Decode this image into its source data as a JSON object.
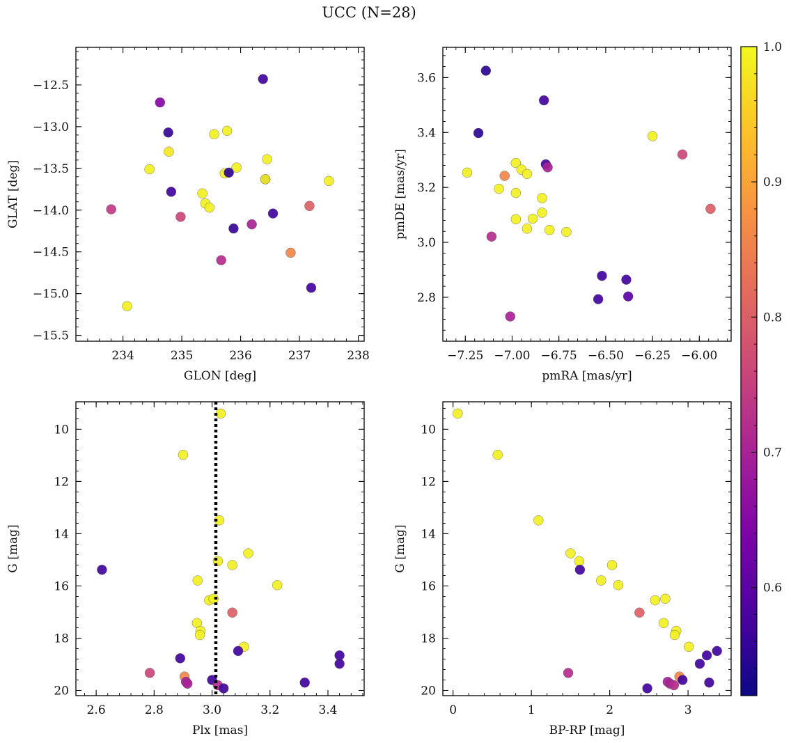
{
  "figure": {
    "title": "UCC (N=28)"
  },
  "colorbar": {
    "range": [
      0.52,
      1.0
    ],
    "ticks": [
      0.6,
      0.7,
      0.8,
      0.9,
      1.0
    ],
    "tick_labels": [
      "0.6",
      "0.7",
      "0.8",
      "0.9",
      "1.0"
    ],
    "colormap": "plasma"
  },
  "chart_data": [
    {
      "type": "scatter",
      "xlabel": "GLON [deg]",
      "ylabel": "GLAT [deg]",
      "xlim": [
        233.2,
        238.1
      ],
      "ylim": [
        -15.57,
        -12.05
      ],
      "y_inverted": false,
      "xticks": [
        234,
        235,
        236,
        237,
        238
      ],
      "xtick_labels": [
        "234",
        "235",
        "236",
        "237",
        "238"
      ],
      "yticks": [
        -15.5,
        -15.0,
        -14.5,
        -14.0,
        -13.5,
        -13.0,
        -12.5
      ],
      "ytick_labels": [
        "−15.5",
        "−15.0",
        "−14.5",
        "−14.0",
        "−13.5",
        "−13.0",
        "−12.5"
      ],
      "points": [
        {
          "x": 236.38,
          "y": -12.43,
          "c": 0.57
        },
        {
          "x": 234.63,
          "y": -12.71,
          "c": 0.65
        },
        {
          "x": 234.77,
          "y": -13.07,
          "c": 0.56
        },
        {
          "x": 235.55,
          "y": -13.09,
          "c": 0.99
        },
        {
          "x": 235.77,
          "y": -13.05,
          "c": 0.99
        },
        {
          "x": 234.78,
          "y": -13.3,
          "c": 0.98
        },
        {
          "x": 236.45,
          "y": -13.39,
          "c": 0.99
        },
        {
          "x": 234.45,
          "y": -13.51,
          "c": 0.99
        },
        {
          "x": 235.93,
          "y": -13.49,
          "c": 0.99
        },
        {
          "x": 235.73,
          "y": -13.56,
          "c": 0.99
        },
        {
          "x": 235.8,
          "y": -13.55,
          "c": 0.55
        },
        {
          "x": 236.42,
          "y": -13.63,
          "c": 0.57
        },
        {
          "x": 236.42,
          "y": -13.63,
          "c": 0.99
        },
        {
          "x": 237.5,
          "y": -13.65,
          "c": 0.99
        },
        {
          "x": 234.82,
          "y": -13.78,
          "c": 0.57
        },
        {
          "x": 235.35,
          "y": -13.8,
          "c": 0.99
        },
        {
          "x": 235.4,
          "y": -13.92,
          "c": 0.99
        },
        {
          "x": 235.47,
          "y": -13.97,
          "c": 0.99
        },
        {
          "x": 233.8,
          "y": -13.99,
          "c": 0.74
        },
        {
          "x": 237.17,
          "y": -13.95,
          "c": 0.8
        },
        {
          "x": 236.55,
          "y": -14.04,
          "c": 0.57
        },
        {
          "x": 234.98,
          "y": -14.08,
          "c": 0.76
        },
        {
          "x": 236.19,
          "y": -14.17,
          "c": 0.7
        },
        {
          "x": 235.88,
          "y": -14.22,
          "c": 0.56
        },
        {
          "x": 236.85,
          "y": -14.51,
          "c": 0.86
        },
        {
          "x": 235.67,
          "y": -14.6,
          "c": 0.72
        },
        {
          "x": 237.2,
          "y": -14.93,
          "c": 0.57
        },
        {
          "x": 234.07,
          "y": -15.15,
          "c": 0.99
        }
      ]
    },
    {
      "type": "scatter",
      "xlabel": "pmRA [mas/yr]",
      "ylabel": "pmDE [mas/yr]",
      "xlim": [
        -7.37,
        -5.83
      ],
      "ylim": [
        2.64,
        3.71
      ],
      "y_inverted": false,
      "xticks": [
        -7.25,
        -7.0,
        -6.75,
        -6.5,
        -6.25,
        -6.0
      ],
      "xtick_labels": [
        "−7.25",
        "−7.00",
        "−6.75",
        "−6.50",
        "−6.25",
        "−6.00"
      ],
      "yticks": [
        2.8,
        3.0,
        3.2,
        3.4,
        3.6
      ],
      "ytick_labels": [
        "2.8",
        "3.0",
        "3.2",
        "3.4",
        "3.6"
      ],
      "points": [
        {
          "x": -7.14,
          "y": 3.625,
          "c": 0.55
        },
        {
          "x": -6.83,
          "y": 3.517,
          "c": 0.57
        },
        {
          "x": -7.18,
          "y": 3.398,
          "c": 0.55
        },
        {
          "x": -6.25,
          "y": 3.387,
          "c": 0.99
        },
        {
          "x": -6.09,
          "y": 3.32,
          "c": 0.76
        },
        {
          "x": -6.98,
          "y": 3.289,
          "c": 0.99
        },
        {
          "x": -6.82,
          "y": 3.284,
          "c": 0.57
        },
        {
          "x": -6.81,
          "y": 3.273,
          "c": 0.7
        },
        {
          "x": -6.95,
          "y": 3.265,
          "c": 0.99
        },
        {
          "x": -7.24,
          "y": 3.254,
          "c": 0.99
        },
        {
          "x": -6.92,
          "y": 3.249,
          "c": 0.99
        },
        {
          "x": -7.04,
          "y": 3.242,
          "c": 0.86
        },
        {
          "x": -7.07,
          "y": 3.195,
          "c": 0.99
        },
        {
          "x": -6.98,
          "y": 3.18,
          "c": 0.99
        },
        {
          "x": -6.84,
          "y": 3.161,
          "c": 0.99
        },
        {
          "x": -5.94,
          "y": 3.122,
          "c": 0.8
        },
        {
          "x": -6.84,
          "y": 3.108,
          "c": 0.99
        },
        {
          "x": -6.98,
          "y": 3.084,
          "c": 0.99
        },
        {
          "x": -6.89,
          "y": 3.086,
          "c": 0.99
        },
        {
          "x": -6.92,
          "y": 3.05,
          "c": 0.99
        },
        {
          "x": -6.8,
          "y": 3.045,
          "c": 0.99
        },
        {
          "x": -6.71,
          "y": 3.038,
          "c": 0.99
        },
        {
          "x": -7.11,
          "y": 3.021,
          "c": 0.72
        },
        {
          "x": -6.52,
          "y": 2.878,
          "c": 0.57
        },
        {
          "x": -6.39,
          "y": 2.864,
          "c": 0.57
        },
        {
          "x": -6.38,
          "y": 2.803,
          "c": 0.6
        },
        {
          "x": -6.54,
          "y": 2.793,
          "c": 0.57
        },
        {
          "x": -7.01,
          "y": 2.73,
          "c": 0.7
        }
      ]
    },
    {
      "type": "scatter",
      "xlabel": "Plx [mas]",
      "ylabel": "G [mag]",
      "xlim": [
        2.53,
        3.525
      ],
      "ylim": [
        20.2,
        8.95
      ],
      "y_inverted": true,
      "xticks": [
        2.6,
        2.8,
        3.0,
        3.2,
        3.4
      ],
      "xtick_labels": [
        "2.6",
        "2.8",
        "3.0",
        "3.2",
        "3.4"
      ],
      "yticks": [
        10,
        12,
        14,
        16,
        18,
        20
      ],
      "ytick_labels": [
        "10",
        "12",
        "14",
        "16",
        "18",
        "20"
      ],
      "vline": {
        "x": 3.013,
        "style": "dotted",
        "color": "#000000"
      },
      "points": [
        {
          "x": 3.03,
          "y": 9.4,
          "c": 0.99
        },
        {
          "x": 2.9,
          "y": 10.98,
          "c": 0.99
        },
        {
          "x": 3.025,
          "y": 13.49,
          "c": 0.99
        },
        {
          "x": 3.125,
          "y": 14.75,
          "c": 0.99
        },
        {
          "x": 3.02,
          "y": 15.05,
          "c": 0.99
        },
        {
          "x": 3.07,
          "y": 15.2,
          "c": 0.99
        },
        {
          "x": 2.62,
          "y": 15.38,
          "c": 0.57
        },
        {
          "x": 2.95,
          "y": 15.79,
          "c": 0.99
        },
        {
          "x": 3.225,
          "y": 15.97,
          "c": 0.99
        },
        {
          "x": 2.99,
          "y": 16.55,
          "c": 0.99
        },
        {
          "x": 3.005,
          "y": 16.49,
          "c": 0.99
        },
        {
          "x": 3.07,
          "y": 17.02,
          "c": 0.8
        },
        {
          "x": 2.948,
          "y": 17.42,
          "c": 0.99
        },
        {
          "x": 2.96,
          "y": 17.72,
          "c": 0.99
        },
        {
          "x": 2.958,
          "y": 17.88,
          "c": 0.99
        },
        {
          "x": 3.11,
          "y": 18.33,
          "c": 0.99
        },
        {
          "x": 3.09,
          "y": 18.49,
          "c": 0.57
        },
        {
          "x": 3.44,
          "y": 18.66,
          "c": 0.57
        },
        {
          "x": 2.89,
          "y": 18.77,
          "c": 0.57
        },
        {
          "x": 3.44,
          "y": 18.98,
          "c": 0.57
        },
        {
          "x": 2.785,
          "y": 19.33,
          "c": 0.76
        },
        {
          "x": 2.905,
          "y": 19.47,
          "c": 0.86
        },
        {
          "x": 3.0,
          "y": 19.6,
          "c": 0.57
        },
        {
          "x": 2.91,
          "y": 19.67,
          "c": 0.7
        },
        {
          "x": 3.32,
          "y": 19.7,
          "c": 0.57
        },
        {
          "x": 2.915,
          "y": 19.74,
          "c": 0.7
        },
        {
          "x": 3.02,
          "y": 19.8,
          "c": 0.72
        },
        {
          "x": 3.04,
          "y": 19.92,
          "c": 0.57
        }
      ]
    },
    {
      "type": "scatter",
      "xlabel": "BP-RP [mag]",
      "ylabel": "G [mag]",
      "xlim": [
        -0.13,
        3.55
      ],
      "ylim": [
        20.2,
        8.95
      ],
      "y_inverted": true,
      "xticks": [
        0,
        1,
        2,
        3
      ],
      "xtick_labels": [
        "0",
        "1",
        "2",
        "3"
      ],
      "yticks": [
        10,
        12,
        14,
        16,
        18,
        20
      ],
      "ytick_labels": [
        "10",
        "12",
        "14",
        "16",
        "18",
        "20"
      ],
      "points": [
        {
          "x": 0.06,
          "y": 9.4,
          "c": 0.99
        },
        {
          "x": 0.57,
          "y": 10.98,
          "c": 0.99
        },
        {
          "x": 1.09,
          "y": 13.49,
          "c": 0.99
        },
        {
          "x": 1.5,
          "y": 14.75,
          "c": 0.99
        },
        {
          "x": 1.61,
          "y": 15.05,
          "c": 0.99
        },
        {
          "x": 2.03,
          "y": 15.2,
          "c": 0.99
        },
        {
          "x": 1.62,
          "y": 15.38,
          "c": 0.57
        },
        {
          "x": 1.89,
          "y": 15.79,
          "c": 0.99
        },
        {
          "x": 2.11,
          "y": 15.97,
          "c": 0.99
        },
        {
          "x": 2.58,
          "y": 16.55,
          "c": 0.99
        },
        {
          "x": 2.71,
          "y": 16.49,
          "c": 0.99
        },
        {
          "x": 2.38,
          "y": 17.02,
          "c": 0.8
        },
        {
          "x": 2.69,
          "y": 17.42,
          "c": 0.99
        },
        {
          "x": 2.85,
          "y": 17.72,
          "c": 0.99
        },
        {
          "x": 2.83,
          "y": 17.88,
          "c": 0.99
        },
        {
          "x": 3.01,
          "y": 18.33,
          "c": 0.99
        },
        {
          "x": 3.37,
          "y": 18.49,
          "c": 0.57
        },
        {
          "x": 3.24,
          "y": 18.66,
          "c": 0.57
        },
        {
          "x": 3.15,
          "y": 18.98,
          "c": 0.57
        },
        {
          "x": 1.47,
          "y": 19.33,
          "c": 0.72
        },
        {
          "x": 2.89,
          "y": 19.47,
          "c": 0.86
        },
        {
          "x": 2.93,
          "y": 19.6,
          "c": 0.57
        },
        {
          "x": 2.74,
          "y": 19.67,
          "c": 0.7
        },
        {
          "x": 3.27,
          "y": 19.7,
          "c": 0.57
        },
        {
          "x": 2.77,
          "y": 19.74,
          "c": 0.7
        },
        {
          "x": 2.82,
          "y": 19.8,
          "c": 0.72
        },
        {
          "x": 2.48,
          "y": 19.92,
          "c": 0.57
        }
      ]
    }
  ]
}
